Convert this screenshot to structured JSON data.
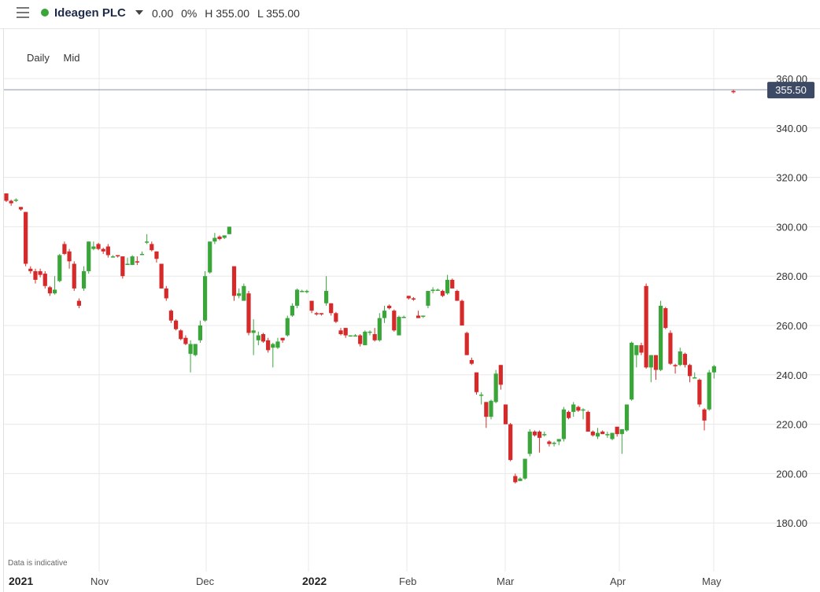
{
  "header": {
    "menu_icon": "hamburger-icon",
    "status_color": "#3aa63a",
    "title": "Ideagen PLC",
    "change": "0.00",
    "change_pct": "0%",
    "high": "H 355.00",
    "low": "L 355.00"
  },
  "toolbar": {
    "interval": "Daily",
    "price_type": "Mid"
  },
  "disclaimer": "Data is indicative",
  "chart_data": {
    "type": "candlestick",
    "y_range": [
      170,
      368
    ],
    "y_ticks": [
      "360.00",
      "340.00",
      "320.00",
      "300.00",
      "280.00",
      "260.00",
      "240.00",
      "220.00",
      "200.00",
      "180.00"
    ],
    "x_labels": [
      "2021",
      "Nov",
      "Dec",
      "2022",
      "Feb",
      "Mar",
      "Apr",
      "May"
    ],
    "x_labels_bold": [
      "2021",
      "2022"
    ],
    "current_price": "355.50",
    "current_price_value": 355.5,
    "up_color": "#3aa63a",
    "down_color": "#d62a2a",
    "candles": [
      [
        313.5,
        313.5,
        310.0,
        310.5
      ],
      [
        310.5,
        311.0,
        308.5,
        309.5
      ],
      [
        310.5,
        311.5,
        310.0,
        311.0
      ],
      [
        308.0,
        308.0,
        306.5,
        307.0
      ],
      [
        306.0,
        306.0,
        284.0,
        285.0
      ],
      [
        283.0,
        284.0,
        281.0,
        282.0
      ],
      [
        282.0,
        283.0,
        277.0,
        278.5
      ],
      [
        282.0,
        283.0,
        279.5,
        280.5
      ],
      [
        281.0,
        282.0,
        275.0,
        276.0
      ],
      [
        275.5,
        276.0,
        272.0,
        273.0
      ],
      [
        273.0,
        280.0,
        272.5,
        274.5
      ],
      [
        278.0,
        289.0,
        277.5,
        288.5
      ],
      [
        293.0,
        294.0,
        288.5,
        289.0
      ],
      [
        290.0,
        291.0,
        283.0,
        286.0
      ],
      [
        285.0,
        286.0,
        274.0,
        275.0
      ],
      [
        270.0,
        271.0,
        267.0,
        268.0
      ],
      [
        275.0,
        284.0,
        274.0,
        282.0
      ],
      [
        282.0,
        294.0,
        281.0,
        294.0
      ],
      [
        291.0,
        294.0,
        290.5,
        292.0
      ],
      [
        293.0,
        293.5,
        290.5,
        291.0
      ],
      [
        291.0,
        291.5,
        289.0,
        290.0
      ],
      [
        292.0,
        293.0,
        287.5,
        288.5
      ],
      [
        288.0,
        288.5,
        287.5,
        288.0
      ],
      [
        288.5,
        288.5,
        287.5,
        288.0
      ],
      [
        288.0,
        288.0,
        279.0,
        280.0
      ],
      [
        285.0,
        287.5,
        284.5,
        285.0
      ],
      [
        284.5,
        288.5,
        284.5,
        288.0
      ],
      [
        286.0,
        288.0,
        284.5,
        285.5
      ],
      [
        289.0,
        290.0,
        288.5,
        289.0
      ],
      [
        294.0,
        297.0,
        293.0,
        294.0
      ],
      [
        293.0,
        294.0,
        290.0,
        290.5
      ],
      [
        290.0,
        290.0,
        285.5,
        287.0
      ],
      [
        285.0,
        285.0,
        275.0,
        275.0
      ],
      [
        275.0,
        276.0,
        270.0,
        271.0
      ],
      [
        266.0,
        266.5,
        261.0,
        262.0
      ],
      [
        262.0,
        262.5,
        258.0,
        258.5
      ],
      [
        258.0,
        258.5,
        254.0,
        254.5
      ],
      [
        255.0,
        256.0,
        252.0,
        252.5
      ],
      [
        248.5,
        254.0,
        241.0,
        252.5
      ],
      [
        248.0,
        252.5,
        247.5,
        252.5
      ],
      [
        254.0,
        262.0,
        253.0,
        260.0
      ],
      [
        262.0,
        282.0,
        261.5,
        280.0
      ],
      [
        281.5,
        294.0,
        281.0,
        294.0
      ],
      [
        294.0,
        297.5,
        293.0,
        295.5
      ],
      [
        296.0,
        296.5,
        294.5,
        295.0
      ],
      [
        295.5,
        296.5,
        295.0,
        296.5
      ],
      [
        297.0,
        300.0,
        297.0,
        300.0
      ],
      [
        284.0,
        284.0,
        270.0,
        272.0
      ],
      [
        272.0,
        275.0,
        271.0,
        273.0
      ],
      [
        270.0,
        277.0,
        270.0,
        276.0
      ],
      [
        273.0,
        274.0,
        256.0,
        257.0
      ],
      [
        257.0,
        262.5,
        248.0,
        258.0
      ],
      [
        254.0,
        257.5,
        252.0,
        256.0
      ],
      [
        256.5,
        257.0,
        253.0,
        253.5
      ],
      [
        254.0,
        255.0,
        249.0,
        250.0
      ],
      [
        251.0,
        253.0,
        243.0,
        252.5
      ],
      [
        251.0,
        255.0,
        250.5,
        253.5
      ],
      [
        255.0,
        255.0,
        253.0,
        254.0
      ],
      [
        256.0,
        264.0,
        255.5,
        263.0
      ],
      [
        264.0,
        269.0,
        263.5,
        268.0
      ],
      [
        268.0,
        275.0,
        267.0,
        274.5
      ],
      [
        274.0,
        274.5,
        273.5,
        274.0
      ],
      [
        274.0,
        274.5,
        273.0,
        274.0
      ],
      [
        270.0,
        270.0,
        265.0,
        266.0
      ],
      [
        265.0,
        265.5,
        264.0,
        264.5
      ],
      [
        265.0,
        265.0,
        264.0,
        264.5
      ],
      [
        269.0,
        280.0,
        268.0,
        274.0
      ],
      [
        269.0,
        269.0,
        264.0,
        265.0
      ],
      [
        265.0,
        265.5,
        261.0,
        261.5
      ],
      [
        258.0,
        259.0,
        256.0,
        256.5
      ],
      [
        259.0,
        259.0,
        255.0,
        256.0
      ],
      [
        256.0,
        256.0,
        255.5,
        256.0
      ],
      [
        256.0,
        256.5,
        255.5,
        256.0
      ],
      [
        256.0,
        256.5,
        251.5,
        252.5
      ],
      [
        252.0,
        258.0,
        252.0,
        257.5
      ],
      [
        257.5,
        258.0,
        256.0,
        257.5
      ],
      [
        256.5,
        259.0,
        253.5,
        254.0
      ],
      [
        254.0,
        265.0,
        253.5,
        263.0
      ],
      [
        263.0,
        268.0,
        261.0,
        266.0
      ],
      [
        268.0,
        268.5,
        266.5,
        267.0
      ],
      [
        266.0,
        266.5,
        257.5,
        258.0
      ],
      [
        256.0,
        264.0,
        256.0,
        263.5
      ],
      [
        263.5,
        264.0,
        263.0,
        263.5
      ],
      [
        272.0,
        272.0,
        270.5,
        271.0
      ],
      [
        271.0,
        271.5,
        270.0,
        270.5
      ],
      [
        264.0,
        266.0,
        263.0,
        263.0
      ],
      [
        264.0,
        264.0,
        263.0,
        264.0
      ],
      [
        268.0,
        274.0,
        267.0,
        274.0
      ],
      [
        274.0,
        275.5,
        273.0,
        274.5
      ],
      [
        274.5,
        275.0,
        274.0,
        274.5
      ],
      [
        274.0,
        274.5,
        271.5,
        272.0
      ],
      [
        273.0,
        280.5,
        272.5,
        278.5
      ],
      [
        278.5,
        279.0,
        275.0,
        275.0
      ],
      [
        274.0,
        274.5,
        270.0,
        270.0
      ],
      [
        270.0,
        270.5,
        260.0,
        260.0
      ],
      [
        257.0,
        257.5,
        248.0,
        248.0
      ],
      [
        246.0,
        247.0,
        244.0,
        244.5
      ],
      [
        241.0,
        241.0,
        232.0,
        233.0
      ],
      [
        232.0,
        233.0,
        228.0,
        232.0
      ],
      [
        229.0,
        229.0,
        218.5,
        223.0
      ],
      [
        223.0,
        230.0,
        222.0,
        229.5
      ],
      [
        229.0,
        242.0,
        228.5,
        240.5
      ],
      [
        244.0,
        244.0,
        234.0,
        236.0
      ],
      [
        228.0,
        228.0,
        220.0,
        220.0
      ],
      [
        220.0,
        220.5,
        205.0,
        205.5
      ],
      [
        199.0,
        200.0,
        196.0,
        196.5
      ],
      [
        197.0,
        198.5,
        197.0,
        198.0
      ],
      [
        198.0,
        206.0,
        197.5,
        206.0
      ],
      [
        208.0,
        218.0,
        207.0,
        217.0
      ],
      [
        217.0,
        217.5,
        215.0,
        215.5
      ],
      [
        217.0,
        217.5,
        208.5,
        214.5
      ],
      [
        216.0,
        217.0,
        215.0,
        216.0
      ],
      [
        213.0,
        213.5,
        211.0,
        212.0
      ],
      [
        212.0,
        213.0,
        211.0,
        212.5
      ],
      [
        213.0,
        214.0,
        211.5,
        214.0
      ],
      [
        214.0,
        227.0,
        213.0,
        226.0
      ],
      [
        225.0,
        225.5,
        222.0,
        222.5
      ],
      [
        225.0,
        229.0,
        223.0,
        228.0
      ],
      [
        227.0,
        227.5,
        225.0,
        225.5
      ],
      [
        226.0,
        226.5,
        222.0,
        226.0
      ],
      [
        225.0,
        225.5,
        217.0,
        217.0
      ],
      [
        217.0,
        217.5,
        215.0,
        215.5
      ],
      [
        215.0,
        218.5,
        214.0,
        216.5
      ],
      [
        217.0,
        217.5,
        216.0,
        216.0
      ],
      [
        216.0,
        217.0,
        214.5,
        216.0
      ],
      [
        214.0,
        216.5,
        213.5,
        216.5
      ],
      [
        219.0,
        219.0,
        215.0,
        216.0
      ],
      [
        216.0,
        218.0,
        208.0,
        218.0
      ],
      [
        217.5,
        228.0,
        217.0,
        228.0
      ],
      [
        230.0,
        253.5,
        229.5,
        253.0
      ],
      [
        248.0,
        252.0,
        243.0,
        252.0
      ],
      [
        252.0,
        253.0,
        248.0,
        249.0
      ],
      [
        276.0,
        277.0,
        242.5,
        243.0
      ],
      [
        243.0,
        248.0,
        237.0,
        248.0
      ],
      [
        248.0,
        248.0,
        238.0,
        242.0
      ],
      [
        242.0,
        270.0,
        241.5,
        268.0
      ],
      [
        267.0,
        267.5,
        258.5,
        259.0
      ],
      [
        257.0,
        258.0,
        244.0,
        244.5
      ],
      [
        244.0,
        244.5,
        240.5,
        243.5
      ],
      [
        244.0,
        251.0,
        243.5,
        249.5
      ],
      [
        248.5,
        249.0,
        243.0,
        244.0
      ],
      [
        244.0,
        244.5,
        237.0,
        239.5
      ],
      [
        238.5,
        241.0,
        238.5,
        239.0
      ],
      [
        238.0,
        238.5,
        227.0,
        228.0
      ],
      [
        226.0,
        226.5,
        217.5,
        221.5
      ],
      [
        226.0,
        242.0,
        225.5,
        241.0
      ],
      [
        241.0,
        244.0,
        238.5,
        243.5
      ],
      [
        355.0,
        355.5,
        354.0,
        354.5
      ]
    ]
  }
}
